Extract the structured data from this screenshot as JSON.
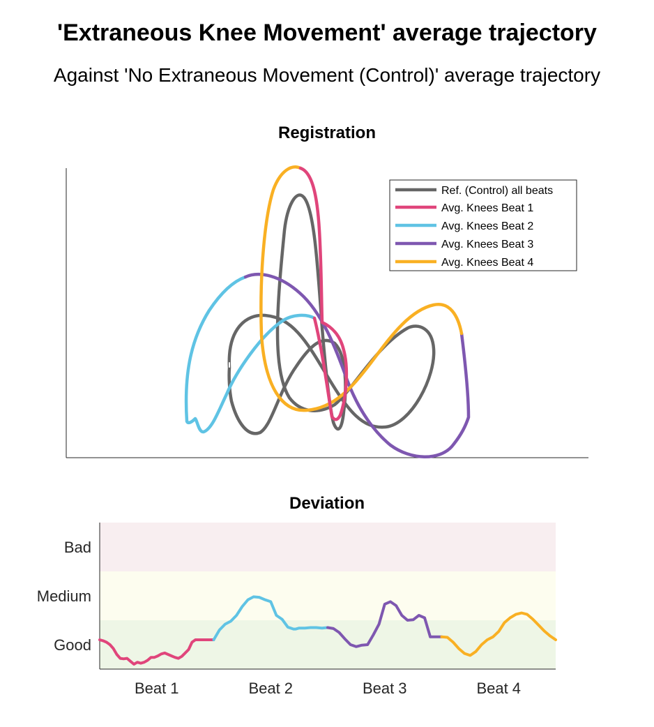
{
  "title": "'Extraneous Knee Movement' average trajectory",
  "subtitle": "Against 'No Extraneous Movement (Control)' average trajectory",
  "colors": {
    "reference": "#666666",
    "beat1": "#E0457B",
    "beat2": "#5FC3E4",
    "beat3": "#7E57B0",
    "beat4": "#F9B023",
    "bad_zone": "#F8EEF0",
    "medium_zone": "#FDFDEF",
    "good_zone": "#EEF6E6"
  },
  "chart_data": [
    {
      "type": "line",
      "title": "Registration",
      "xlabel": "",
      "ylabel": "",
      "axes_ticks": "none",
      "legend_position": "top-right",
      "legend": [
        "Ref. (Control) all beats",
        "Avg. Knees Beat 1",
        "Avg. Knees Beat 2",
        "Avg. Knees Beat 3",
        "Avg. Knees Beat 4"
      ],
      "series_note": "2D trajectories (arbitrary units, no axis ticks); the reference is a closed loop, the four average beats form one continuous colored loop"
    },
    {
      "type": "line",
      "title": "Deviation",
      "categories": [
        "Beat 1",
        "Beat 2",
        "Beat 3",
        "Beat 4"
      ],
      "zones": [
        "Good",
        "Medium",
        "Bad"
      ],
      "ylim": [
        0,
        3
      ],
      "series": [
        {
          "name": "Beat 1",
          "x": [
            0.0,
            0.03,
            0.06,
            0.09,
            0.12,
            0.15,
            0.18,
            0.21,
            0.24,
            0.27,
            0.3,
            0.33,
            0.36,
            0.39,
            0.42,
            0.45,
            0.48,
            0.51,
            0.54,
            0.57,
            0.6,
            0.63,
            0.66,
            0.69,
            0.72,
            0.75,
            0.78,
            0.81,
            0.84,
            0.87,
            0.9,
            0.93,
            0.96,
            1.0
          ],
          "y": [
            0.6,
            0.58,
            0.55,
            0.5,
            0.42,
            0.3,
            0.22,
            0.21,
            0.22,
            0.16,
            0.1,
            0.14,
            0.12,
            0.14,
            0.18,
            0.24,
            0.24,
            0.27,
            0.31,
            0.33,
            0.3,
            0.27,
            0.24,
            0.22,
            0.26,
            0.33,
            0.4,
            0.55,
            0.6,
            0.6,
            0.6,
            0.6,
            0.6,
            0.6
          ]
        },
        {
          "name": "Beat 2",
          "x": [
            1.0,
            1.05,
            1.1,
            1.15,
            1.2,
            1.25,
            1.3,
            1.35,
            1.4,
            1.45,
            1.5,
            1.55,
            1.6,
            1.65,
            1.7,
            1.72,
            1.75,
            1.8,
            1.85,
            1.9,
            1.95,
            2.0
          ],
          "y": [
            0.6,
            0.8,
            0.92,
            0.98,
            1.1,
            1.28,
            1.42,
            1.48,
            1.47,
            1.42,
            1.38,
            1.1,
            1.02,
            0.86,
            0.82,
            0.82,
            0.84,
            0.84,
            0.85,
            0.85,
            0.84,
            0.85
          ]
        },
        {
          "name": "Beat 3",
          "x": [
            2.0,
            2.05,
            2.1,
            2.15,
            2.2,
            2.25,
            2.3,
            2.35,
            2.4,
            2.45,
            2.5,
            2.55,
            2.6,
            2.65,
            2.7,
            2.75,
            2.8,
            2.85,
            2.9,
            2.93,
            2.96,
            3.0
          ],
          "y": [
            0.85,
            0.83,
            0.75,
            0.62,
            0.5,
            0.46,
            0.49,
            0.5,
            0.7,
            0.92,
            1.33,
            1.38,
            1.3,
            1.1,
            1.0,
            1.01,
            1.1,
            1.05,
            0.66,
            0.66,
            0.66,
            0.66
          ]
        },
        {
          "name": "Beat 4",
          "x": [
            3.0,
            3.05,
            3.1,
            3.15,
            3.2,
            3.25,
            3.3,
            3.35,
            3.4,
            3.45,
            3.5,
            3.55,
            3.6,
            3.65,
            3.7,
            3.75,
            3.8,
            3.85,
            3.9,
            3.95,
            4.0
          ],
          "y": [
            0.66,
            0.65,
            0.55,
            0.42,
            0.32,
            0.28,
            0.36,
            0.5,
            0.6,
            0.66,
            0.77,
            0.95,
            1.05,
            1.12,
            1.15,
            1.12,
            1.02,
            0.9,
            0.78,
            0.68,
            0.6
          ]
        }
      ]
    }
  ]
}
